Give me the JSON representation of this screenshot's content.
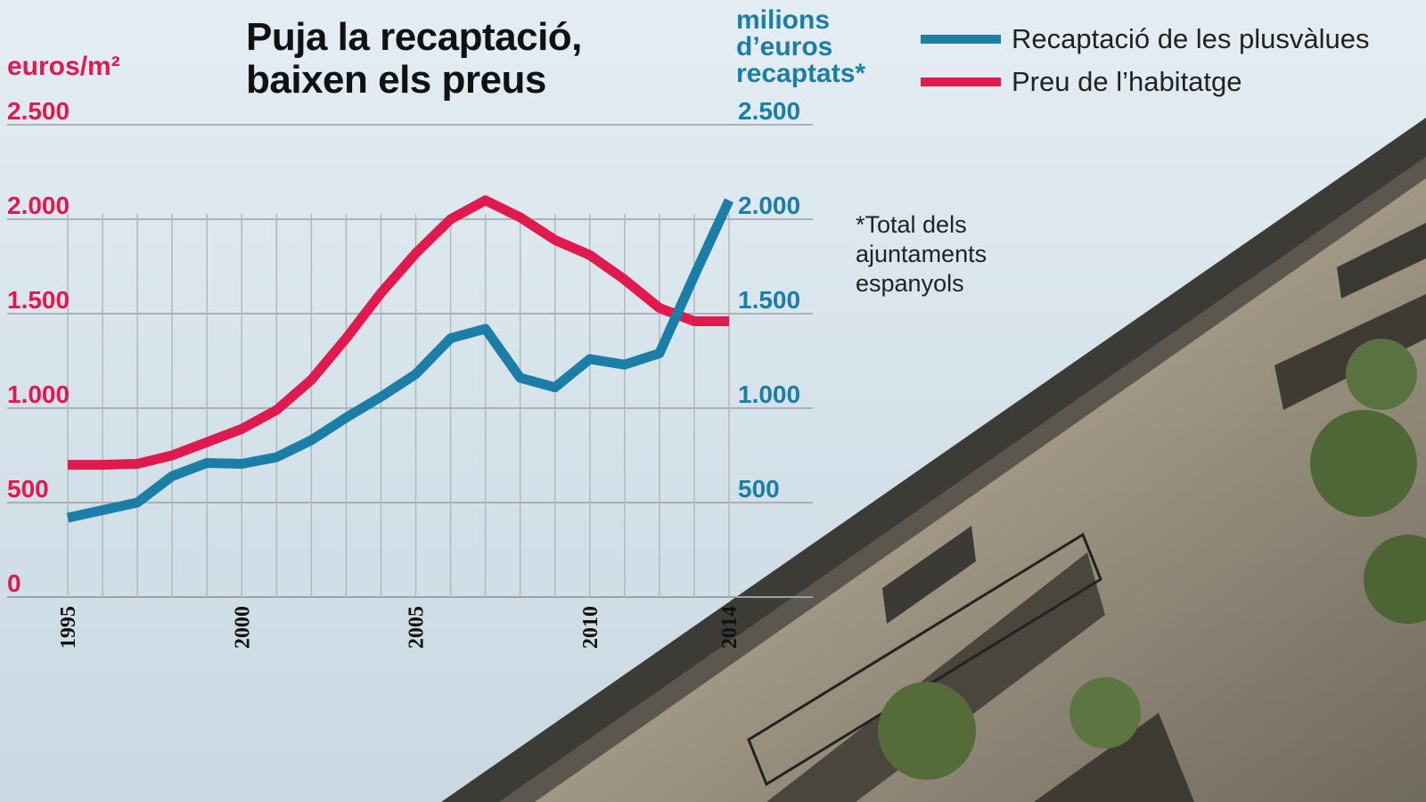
{
  "title_line1": "Puja la recaptació,",
  "title_line2": "baixen els preus",
  "left_axis_unit": "euros/m²",
  "right_axis_unit": [
    "milions",
    "d’euros",
    "recaptats*"
  ],
  "legend": [
    {
      "label": "Recaptació de les plusvàlues",
      "color": "#1a7ea6"
    },
    {
      "label": "Preu de l’habitatge",
      "color": "#e0194f"
    }
  ],
  "note": [
    "*Total dels",
    "ajuntaments",
    "espanyols"
  ],
  "chart_data": {
    "type": "line",
    "x": [
      1995,
      1996,
      1997,
      1998,
      1999,
      2000,
      2001,
      2002,
      2003,
      2004,
      2005,
      2006,
      2007,
      2008,
      2009,
      2010,
      2011,
      2012,
      2013,
      2014
    ],
    "x_tick_labels": [
      "1995",
      "2000",
      "2005",
      "2010",
      "2014"
    ],
    "series": [
      {
        "name": "Recaptació de les plusvàlues",
        "axis": "right",
        "color": "#1a7ea6",
        "values": [
          420,
          460,
          500,
          640,
          710,
          705,
          740,
          830,
          950,
          1060,
          1180,
          1370,
          1420,
          1160,
          1110,
          1260,
          1230,
          1290,
          1700,
          2100
        ]
      },
      {
        "name": "Preu de l’habitatge",
        "axis": "left",
        "color": "#e0194f",
        "values": [
          700,
          700,
          705,
          750,
          820,
          890,
          990,
          1150,
          1370,
          1610,
          1820,
          2000,
          2100,
          2010,
          1890,
          1810,
          1680,
          1530,
          1460,
          1460
        ]
      }
    ],
    "y_left": {
      "ticks": [
        "0",
        "500",
        "1.000",
        "1.500",
        "2.000",
        "2.500"
      ],
      "tick_values": [
        0,
        500,
        1000,
        1500,
        2000,
        2500
      ],
      "range": [
        0,
        2500
      ],
      "color": "#e0194f"
    },
    "y_right": {
      "ticks": [
        "500",
        "1.000",
        "1.500",
        "2.000",
        "2.500"
      ],
      "tick_values": [
        500,
        1000,
        1500,
        2000,
        2500
      ],
      "range": [
        0,
        2500
      ],
      "color": "#1a7ea6"
    },
    "grid": true
  }
}
